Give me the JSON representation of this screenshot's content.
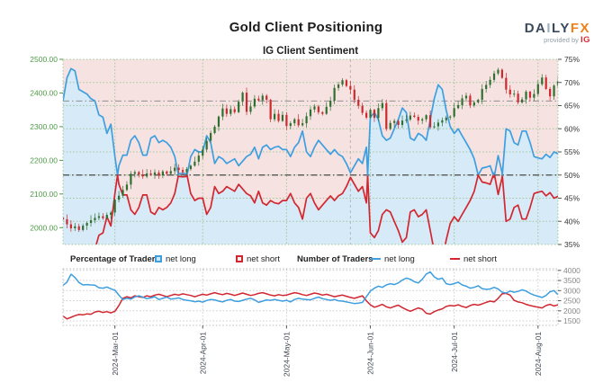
{
  "header": {
    "title": "Gold Client Positioning",
    "logo": {
      "part1": "DA",
      "bar": "I",
      "part2": "LY",
      "part3": "FX",
      "provided_by": "provided by",
      "ig": "IG"
    }
  },
  "legend": {
    "group1_label": "Percentage of Traders",
    "group2_label": "Number of Traders",
    "net_long_label": "net long",
    "net_short_label": "net short"
  },
  "colors": {
    "net_long_line": "#3d9fe0",
    "net_short_line": "#d22730",
    "fill_below_long": "#d7eaf8",
    "fill_above_long": "#f7e2e2",
    "candle_up": "#2f7031",
    "candle_down": "#cc2a2e",
    "grid_green": "#9fc79b",
    "grid_gray": "#cccccc",
    "price_label": "#4e9a46",
    "pct_label": "#333333",
    "count_label": "#888888",
    "ref_line": "#4a4a4a",
    "date_label": "#3f4650"
  },
  "chart_data": [
    {
      "type": "candlestick+line",
      "title": "IG Client Sentiment",
      "x_axis": {
        "tick_labels": [
          "2024-Mar-01",
          "2024-Apr-01",
          "2024-May-01",
          "2024-Jun-01",
          "2024-Jul-01",
          "2024-Aug-01"
        ],
        "tick_day_indices": [
          13,
          35,
          56,
          77,
          98,
          119
        ],
        "n_points": 125
      },
      "price_axis": {
        "side": "left",
        "tick_labels": [
          "2500.00",
          "2400.00",
          "2300.00",
          "2200.00",
          "2100.00",
          "2000.00"
        ],
        "tick_values": [
          2500,
          2400,
          2300,
          2200,
          2100,
          2000
        ],
        "render_range": [
          1950,
          2500
        ]
      },
      "pct_axis": {
        "side": "right",
        "tick_labels": [
          "75%",
          "70%",
          "65%",
          "60%",
          "55%",
          "50%",
          "45%",
          "40%",
          "35%"
        ],
        "tick_values": [
          75,
          70,
          65,
          60,
          55,
          50,
          45,
          40,
          35
        ],
        "range": [
          35,
          75
        ]
      },
      "reference_lines_pct": [
        50,
        66
      ],
      "marker_vline_day_index": 72,
      "series": [
        {
          "name": "Gold price daily candles",
          "type": "candlestick",
          "close": [
            2025,
            2010,
            1998,
            2004,
            1993,
            2006,
            2014,
            2022,
            2029,
            2034,
            2028,
            2038,
            2045,
            2083,
            2095,
            2112,
            2128,
            2160,
            2165,
            2158,
            2152,
            2161,
            2157,
            2164,
            2155,
            2167,
            2160,
            2168,
            2178,
            2171,
            2165,
            2174,
            2184,
            2196,
            2214,
            2232,
            2258,
            2281,
            2300,
            2330,
            2354,
            2338,
            2352,
            2343,
            2374,
            2401,
            2344,
            2360,
            2383,
            2378,
            2392,
            2380,
            2322,
            2338,
            2317,
            2335,
            2302,
            2310,
            2322,
            2304,
            2310,
            2331,
            2351,
            2360,
            2343,
            2338,
            2359,
            2377,
            2415,
            2425,
            2438,
            2421,
            2410,
            2380,
            2362,
            2341,
            2327,
            2350,
            2326,
            2355,
            2370,
            2293,
            2311,
            2317,
            2305,
            2318,
            2321,
            2333,
            2329,
            2318,
            2322,
            2334,
            2298,
            2301,
            2312,
            2319,
            2327,
            2330,
            2355,
            2364,
            2384,
            2392,
            2363,
            2372,
            2380,
            2412,
            2424,
            2439,
            2458,
            2469,
            2445,
            2410,
            2396,
            2398,
            2372,
            2381,
            2404,
            2386,
            2397,
            2426,
            2446,
            2412,
            2390,
            2422,
            2436
          ]
        },
        {
          "name": "net long",
          "type": "line",
          "unit": "%",
          "colored_by_50": true,
          "values": [
            66,
            71,
            73,
            72.5,
            68.5,
            68,
            67.5,
            66.5,
            66,
            63,
            62.5,
            59,
            61,
            54,
            48,
            45.7,
            45.7,
            42.5,
            41.5,
            43,
            45.7,
            45.7,
            42,
            41.5,
            43,
            42.5,
            43,
            44,
            46,
            50.3,
            50.4,
            50.3,
            46,
            44.5,
            45,
            45,
            41.5,
            43,
            47.5,
            46,
            46.5,
            47.5,
            47,
            46.5,
            48,
            47,
            46,
            45.5,
            44,
            46.5,
            44,
            43.5,
            44.5,
            44,
            43.8,
            44.5,
            44.5,
            46,
            44,
            43,
            40.5,
            45,
            46,
            44,
            42.5,
            43.5,
            44.5,
            45.5,
            44.5,
            45.5,
            46,
            47.5,
            49.5,
            48,
            46.5,
            47.5,
            44,
            62.5,
            63.5,
            62,
            58.5,
            57.5,
            58,
            60,
            62,
            64.5,
            63.5,
            58,
            57.5,
            59,
            58.5,
            57.5,
            62,
            66.5,
            69.5,
            68.5,
            64,
            60.5,
            59,
            60,
            58.5,
            57,
            55.5,
            53.5,
            50,
            48.5,
            48.3,
            48,
            50.5,
            45.8,
            49.5,
            60,
            59.5,
            57,
            56.5,
            59.5,
            59.5,
            57,
            54,
            53.7,
            53.5,
            54.5,
            53.8,
            55,
            54.6
          ]
        },
        {
          "name": "net short",
          "type": "line",
          "unit": "%",
          "colored_by_50": true,
          "values": [
            34,
            29,
            27,
            27.5,
            31.5,
            32,
            32.5,
            33.5,
            34,
            37,
            37.5,
            41,
            39,
            46,
            52,
            54.3,
            54.3,
            57.5,
            58.5,
            57,
            54.3,
            54.3,
            58,
            58.5,
            57,
            57.5,
            57,
            56,
            54,
            49.7,
            49.6,
            49.7,
            54,
            55.5,
            55,
            55,
            58.5,
            57,
            52.5,
            54,
            53.5,
            52.5,
            53,
            53.5,
            52,
            53,
            54,
            54.5,
            56,
            53.5,
            56,
            56.5,
            55.5,
            56,
            56.2,
            55.5,
            55.5,
            54,
            56,
            57,
            59.5,
            55,
            54,
            56,
            57.5,
            56.5,
            55.5,
            54.5,
            55.5,
            54.5,
            54,
            52.5,
            50.5,
            52,
            53.5,
            52.5,
            56,
            37.5,
            36.5,
            38,
            41.5,
            42.5,
            42,
            40,
            38,
            35.5,
            36.5,
            42,
            42.5,
            41,
            41.5,
            42.5,
            38,
            33.5,
            30.5,
            31.5,
            36,
            39.5,
            41,
            40,
            41.5,
            43,
            44.5,
            46.5,
            50,
            51.5,
            51.7,
            52,
            49.5,
            54.2,
            50.5,
            40,
            40.5,
            43,
            43.5,
            40.5,
            40.5,
            43,
            46,
            46.3,
            46.5,
            45.5,
            46.2,
            45,
            45.4
          ]
        }
      ]
    },
    {
      "type": "line",
      "value_axis": {
        "side": "right",
        "tick_labels": [
          "4000",
          "3500",
          "3000",
          "2500",
          "2000",
          "1500"
        ],
        "tick_values": [
          4000,
          3500,
          3000,
          2500,
          2000,
          1500
        ],
        "render_range": [
          1280,
          4080
        ]
      },
      "x_axis": {
        "tick_labels": [
          "2024-Mar-01",
          "2024-Apr-01",
          "2024-May-01",
          "2024-Jun-01",
          "2024-Jul-01",
          "2024-Aug-01"
        ],
        "tick_day_indices": [
          13,
          35,
          56,
          77,
          98,
          119
        ],
        "n_points": 125
      },
      "series": [
        {
          "name": "net long",
          "type": "line",
          "values": [
            3260,
            3420,
            3810,
            3650,
            3400,
            3280,
            3300,
            3280,
            3270,
            3140,
            3120,
            3180,
            3090,
            3020,
            2780,
            2560,
            2620,
            2580,
            2690,
            2740,
            2680,
            2600,
            2640,
            2700,
            2560,
            2620,
            2680,
            2580,
            2600,
            2640,
            2560,
            2520,
            2500,
            2450,
            2480,
            2430,
            2510,
            2560,
            2540,
            2480,
            2440,
            2520,
            2560,
            2480,
            2460,
            2520,
            2580,
            2620,
            2540,
            2420,
            2480,
            2540,
            2520,
            2560,
            2520,
            2480,
            2520,
            2440,
            2560,
            2620,
            2580,
            2560,
            2540,
            2620,
            2680,
            2600,
            2560,
            2520,
            2560,
            2500,
            2480,
            2440,
            2400,
            2360,
            2380,
            2420,
            2700,
            2980,
            3120,
            3220,
            3160,
            3280,
            3340,
            3300,
            3380,
            3520,
            3620,
            3560,
            3440,
            3380,
            3560,
            3820,
            3920,
            3680,
            3560,
            3620,
            3340,
            3300,
            3340,
            3420,
            3280,
            3220,
            3120,
            3160,
            3240,
            3100,
            3060,
            3080,
            3160,
            3080,
            2920,
            2880,
            2980,
            2920,
            2960,
            3040,
            2980,
            2860,
            2780,
            2720,
            2660,
            2760,
            2940,
            3000,
            2800
          ]
        },
        {
          "name": "net short",
          "type": "line",
          "values": [
            1740,
            1600,
            1680,
            1760,
            1820,
            1800,
            1850,
            1830,
            1940,
            1980,
            1920,
            1960,
            1900,
            1980,
            2260,
            2620,
            2700,
            2640,
            2740,
            2700,
            2660,
            2740,
            2700,
            2780,
            2820,
            2760,
            2700,
            2760,
            2820,
            2780,
            2840,
            2800,
            2760,
            2700,
            2760,
            2820,
            2780,
            2840,
            2900,
            2840,
            2800,
            2860,
            2820,
            2760,
            2820,
            2880,
            2820,
            2760,
            2800,
            2860,
            2900,
            2840,
            2780,
            2740,
            2800,
            2760,
            2780,
            2840,
            2900,
            2860,
            2800,
            2760,
            2820,
            2880,
            2840,
            2780,
            2820,
            2760,
            2700,
            2740,
            2780,
            2720,
            2660,
            2620,
            2680,
            2740,
            2500,
            2300,
            2180,
            2240,
            2320,
            2200,
            2140,
            2220,
            2280,
            2160,
            2060,
            1980,
            2060,
            2140,
            2080,
            1880,
            1840,
            1960,
            2040,
            2100,
            2220,
            2260,
            2240,
            2300,
            2220,
            2160,
            2260,
            2320,
            2280,
            2340,
            2420,
            2480,
            2440,
            2620,
            2840,
            2860,
            2780,
            2520,
            2440,
            2400,
            2320,
            2260,
            2220,
            2180,
            2140,
            2260,
            2320,
            2240,
            2300
          ]
        }
      ]
    }
  ]
}
